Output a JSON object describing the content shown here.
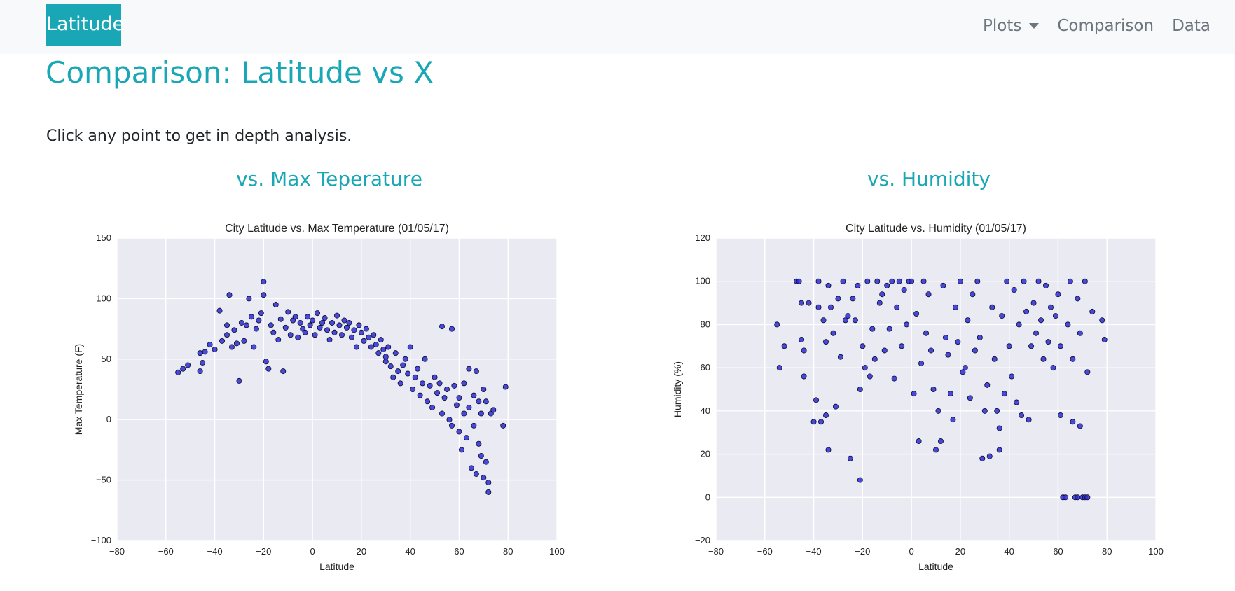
{
  "navbar": {
    "brand": "Latitude",
    "links": [
      {
        "label": "Plots",
        "dropdown": true
      },
      {
        "label": "Comparison"
      },
      {
        "label": "Data"
      }
    ]
  },
  "page": {
    "title": "Comparison: Latitude vs X",
    "intro": "Click any point to get in depth analysis."
  },
  "sections": [
    {
      "heading": "vs. Max Teperature"
    },
    {
      "heading": "vs. Humidity"
    }
  ],
  "colors": {
    "accent": "#1aa7b5",
    "navbar_bg": "#f8f9fa",
    "plot_bg": "#eaeaf2",
    "marker": "#2c2cd6"
  },
  "chart_data": [
    {
      "type": "scatter",
      "title": "City Latitude vs. Max Temperature (01/05/17)",
      "xlabel": "Latitude",
      "ylabel": "Max Temperature (F)",
      "xlim": [
        -80,
        100
      ],
      "ylim": [
        -100,
        150
      ],
      "xticks": [
        -80,
        -60,
        -40,
        -20,
        0,
        20,
        40,
        60,
        80,
        100
      ],
      "yticks": [
        -100,
        -50,
        0,
        50,
        100,
        150
      ],
      "grid": true,
      "points": [
        [
          -55,
          39
        ],
        [
          -53,
          42
        ],
        [
          -51,
          45
        ],
        [
          -46,
          40
        ],
        [
          -46,
          55
        ],
        [
          -45,
          47
        ],
        [
          -44,
          56
        ],
        [
          -42,
          62
        ],
        [
          -40,
          58
        ],
        [
          -38,
          90
        ],
        [
          -37,
          65
        ],
        [
          -35,
          70
        ],
        [
          -35,
          78
        ],
        [
          -34,
          103
        ],
        [
          -33,
          60
        ],
        [
          -32,
          74
        ],
        [
          -31,
          63
        ],
        [
          -30,
          32
        ],
        [
          -29,
          80
        ],
        [
          -28,
          65
        ],
        [
          -27,
          78
        ],
        [
          -26,
          100
        ],
        [
          -25,
          85
        ],
        [
          -24,
          60
        ],
        [
          -23,
          75
        ],
        [
          -22,
          82
        ],
        [
          -21,
          88
        ],
        [
          -20,
          114
        ],
        [
          -20,
          103
        ],
        [
          -19,
          48
        ],
        [
          -18,
          42
        ],
        [
          -17,
          78
        ],
        [
          -16,
          72
        ],
        [
          -15,
          95
        ],
        [
          -14,
          66
        ],
        [
          -13,
          83
        ],
        [
          -12,
          40
        ],
        [
          -11,
          76
        ],
        [
          -10,
          89
        ],
        [
          -9,
          70
        ],
        [
          -8,
          82
        ],
        [
          -7,
          85
        ],
        [
          -6,
          68
        ],
        [
          -5,
          80
        ],
        [
          -4,
          75
        ],
        [
          -3,
          72
        ],
        [
          -2,
          85
        ],
        [
          -1,
          78
        ],
        [
          0,
          82
        ],
        [
          1,
          70
        ],
        [
          2,
          88
        ],
        [
          3,
          76
        ],
        [
          4,
          80
        ],
        [
          5,
          84
        ],
        [
          6,
          74
        ],
        [
          7,
          66
        ],
        [
          8,
          80
        ],
        [
          9,
          72
        ],
        [
          10,
          86
        ],
        [
          11,
          78
        ],
        [
          12,
          70
        ],
        [
          13,
          82
        ],
        [
          14,
          76
        ],
        [
          15,
          80
        ],
        [
          16,
          68
        ],
        [
          17,
          74
        ],
        [
          18,
          60
        ],
        [
          19,
          78
        ],
        [
          20,
          72
        ],
        [
          21,
          65
        ],
        [
          22,
          75
        ],
        [
          23,
          68
        ],
        [
          24,
          60
        ],
        [
          25,
          70
        ],
        [
          26,
          62
        ],
        [
          27,
          55
        ],
        [
          28,
          66
        ],
        [
          29,
          58
        ],
        [
          30,
          48
        ],
        [
          30,
          52
        ],
        [
          31,
          60
        ],
        [
          32,
          44
        ],
        [
          33,
          35
        ],
        [
          34,
          55
        ],
        [
          35,
          40
        ],
        [
          36,
          30
        ],
        [
          37,
          45
        ],
        [
          38,
          50
        ],
        [
          39,
          38
        ],
        [
          40,
          60
        ],
        [
          41,
          25
        ],
        [
          42,
          35
        ],
        [
          43,
          42
        ],
        [
          44,
          20
        ],
        [
          45,
          30
        ],
        [
          46,
          50
        ],
        [
          47,
          15
        ],
        [
          48,
          28
        ],
        [
          49,
          10
        ],
        [
          50,
          35
        ],
        [
          51,
          22
        ],
        [
          52,
          30
        ],
        [
          53,
          77
        ],
        [
          53,
          5
        ],
        [
          54,
          18
        ],
        [
          55,
          25
        ],
        [
          56,
          0
        ],
        [
          57,
          75
        ],
        [
          57,
          -5
        ],
        [
          58,
          28
        ],
        [
          59,
          12
        ],
        [
          60,
          -10
        ],
        [
          60,
          18
        ],
        [
          61,
          -25
        ],
        [
          62,
          5
        ],
        [
          62,
          30
        ],
        [
          63,
          -15
        ],
        [
          64,
          42
        ],
        [
          64,
          10
        ],
        [
          65,
          -40
        ],
        [
          66,
          20
        ],
        [
          66,
          -5
        ],
        [
          67,
          40
        ],
        [
          67,
          -45
        ],
        [
          68,
          15
        ],
        [
          68,
          -20
        ],
        [
          69,
          -30
        ],
        [
          69,
          5
        ],
        [
          70,
          25
        ],
        [
          70,
          -48
        ],
        [
          71,
          -35
        ],
        [
          71,
          15
        ],
        [
          72,
          -52
        ],
        [
          72,
          -60
        ],
        [
          73,
          5
        ],
        [
          74,
          8
        ],
        [
          78,
          -5
        ],
        [
          79,
          27
        ]
      ]
    },
    {
      "type": "scatter",
      "title": "City Latitude vs. Humidity (01/05/17)",
      "xlabel": "Latitude",
      "ylabel": "Humidity (%)",
      "xlim": [
        -80,
        100
      ],
      "ylim": [
        -20,
        120
      ],
      "xticks": [
        -80,
        -60,
        -40,
        -20,
        0,
        20,
        40,
        60,
        80,
        100
      ],
      "yticks": [
        -20,
        0,
        20,
        40,
        60,
        80,
        100,
        120
      ],
      "grid": true,
      "points": [
        [
          -55,
          80
        ],
        [
          -54,
          60
        ],
        [
          -52,
          70
        ],
        [
          -47,
          100
        ],
        [
          -46,
          100
        ],
        [
          -45,
          90
        ],
        [
          -45,
          73
        ],
        [
          -44,
          68
        ],
        [
          -44,
          56
        ],
        [
          -42,
          90
        ],
        [
          -40,
          35
        ],
        [
          -39,
          45
        ],
        [
          -38,
          100
        ],
        [
          -38,
          88
        ],
        [
          -37,
          35
        ],
        [
          -36,
          82
        ],
        [
          -35,
          72
        ],
        [
          -35,
          38
        ],
        [
          -34,
          22
        ],
        [
          -34,
          98
        ],
        [
          -33,
          88
        ],
        [
          -32,
          76
        ],
        [
          -31,
          42
        ],
        [
          -30,
          92
        ],
        [
          -29,
          65
        ],
        [
          -28,
          100
        ],
        [
          -27,
          82
        ],
        [
          -26,
          84
        ],
        [
          -25,
          18
        ],
        [
          -24,
          92
        ],
        [
          -23,
          82
        ],
        [
          -22,
          98
        ],
        [
          -21,
          50
        ],
        [
          -21,
          8
        ],
        [
          -20,
          70
        ],
        [
          -19,
          60
        ],
        [
          -18,
          100
        ],
        [
          -17,
          56
        ],
        [
          -16,
          78
        ],
        [
          -15,
          64
        ],
        [
          -14,
          100
        ],
        [
          -13,
          90
        ],
        [
          -12,
          94
        ],
        [
          -11,
          68
        ],
        [
          -10,
          98
        ],
        [
          -9,
          78
        ],
        [
          -8,
          100
        ],
        [
          -7,
          55
        ],
        [
          -6,
          88
        ],
        [
          -5,
          100
        ],
        [
          -4,
          70
        ],
        [
          -3,
          96
        ],
        [
          -2,
          80
        ],
        [
          -1,
          100
        ],
        [
          0,
          100
        ],
        [
          1,
          48
        ],
        [
          2,
          85
        ],
        [
          3,
          26
        ],
        [
          4,
          62
        ],
        [
          5,
          100
        ],
        [
          6,
          76
        ],
        [
          7,
          94
        ],
        [
          8,
          68
        ],
        [
          9,
          50
        ],
        [
          10,
          22
        ],
        [
          11,
          40
        ],
        [
          12,
          26
        ],
        [
          13,
          98
        ],
        [
          14,
          74
        ],
        [
          15,
          66
        ],
        [
          16,
          48
        ],
        [
          17,
          36
        ],
        [
          18,
          88
        ],
        [
          19,
          72
        ],
        [
          20,
          100
        ],
        [
          21,
          58
        ],
        [
          22,
          60
        ],
        [
          23,
          82
        ],
        [
          24,
          46
        ],
        [
          25,
          94
        ],
        [
          26,
          68
        ],
        [
          27,
          100
        ],
        [
          28,
          74
        ],
        [
          29,
          18
        ],
        [
          30,
          40
        ],
        [
          31,
          52
        ],
        [
          32,
          19
        ],
        [
          33,
          88
        ],
        [
          34,
          64
        ],
        [
          35,
          40
        ],
        [
          36,
          22
        ],
        [
          36,
          32
        ],
        [
          37,
          84
        ],
        [
          38,
          48
        ],
        [
          39,
          100
        ],
        [
          40,
          70
        ],
        [
          41,
          56
        ],
        [
          42,
          96
        ],
        [
          43,
          44
        ],
        [
          44,
          80
        ],
        [
          45,
          38
        ],
        [
          46,
          100
        ],
        [
          47,
          86
        ],
        [
          48,
          36
        ],
        [
          49,
          70
        ],
        [
          50,
          90
        ],
        [
          51,
          76
        ],
        [
          52,
          100
        ],
        [
          53,
          82
        ],
        [
          54,
          64
        ],
        [
          55,
          98
        ],
        [
          56,
          72
        ],
        [
          57,
          88
        ],
        [
          58,
          60
        ],
        [
          59,
          84
        ],
        [
          60,
          94
        ],
        [
          61,
          38
        ],
        [
          61,
          70
        ],
        [
          62,
          0
        ],
        [
          63,
          0
        ],
        [
          64,
          80
        ],
        [
          65,
          100
        ],
        [
          66,
          64
        ],
        [
          66,
          35
        ],
        [
          67,
          0
        ],
        [
          68,
          92
        ],
        [
          68,
          0
        ],
        [
          69,
          33
        ],
        [
          69,
          76
        ],
        [
          70,
          0
        ],
        [
          71,
          0
        ],
        [
          71,
          100
        ],
        [
          72,
          0
        ],
        [
          72,
          58
        ],
        [
          74,
          86
        ],
        [
          78,
          82
        ],
        [
          79,
          73
        ]
      ]
    }
  ]
}
